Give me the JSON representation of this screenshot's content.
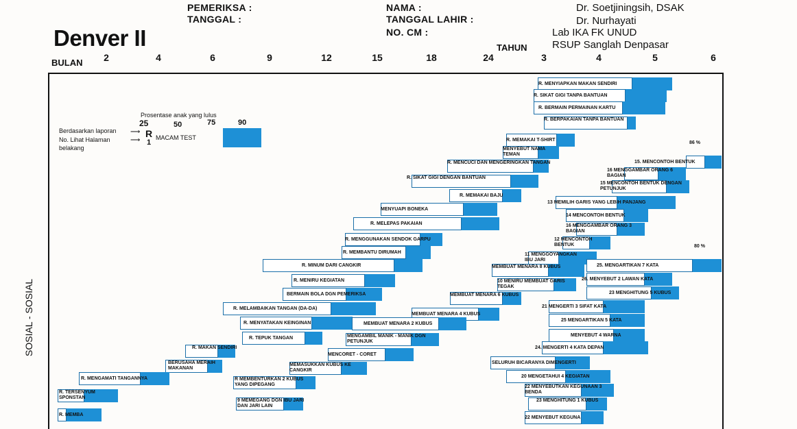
{
  "header": {
    "examiner_label": "PEMERIKSA :",
    "date_label": "TANGGAL :",
    "name_label": "NAMA :",
    "dob_label": "TANGGAL LAHIR :",
    "cm_label": "NO. CM :",
    "doctor1": "Dr. Soetjiningsih, DSAK",
    "doctor2": "Dr. Nurhayati",
    "lab": "Lab IKA FK UNUD",
    "hospital": "RSUP Sanglah Denpasar",
    "title": "Denver II",
    "unit_months": "BULAN",
    "unit_years": "TAHUN"
  },
  "ticks": {
    "months": [
      "2",
      "4",
      "6",
      "9",
      "12",
      "15",
      "18",
      "24"
    ],
    "years": [
      "3",
      "4",
      "5",
      "6"
    ]
  },
  "legend": {
    "percent_title": "Prosentase anak yang lulus",
    "p25": "25",
    "p50": "50",
    "p75": "75",
    "p90": "90",
    "report_line1": "Berdasarkan laporan",
    "report_line2": "No. Lihat Halaman",
    "report_line3": "belakang",
    "r_mark": "R",
    "r_num": "1",
    "test_label": "MACAM TEST"
  },
  "side_label": "SOSIAL - SOSIAL",
  "pct_marks": [
    "86 %",
    "80 %"
  ],
  "items": [
    {
      "label": "R. MENYIAPKAN MAKAN SENDIRI"
    },
    {
      "label": "R. SIKAT GIGI TANPA BANTUAN"
    },
    {
      "label": "R. BERMAIN PERMAINAN KARTU"
    },
    {
      "label": "R. BERPAKAIAN TANPA BANTUAN"
    },
    {
      "label": "R. MEMAKAI T-SHIRT"
    },
    {
      "label": "MENYEBUT NAMA TEMAN"
    },
    {
      "label": "R. MENCUCI DAN MENGERINGKAN TANGAN"
    },
    {
      "label": "R. SIKAT GIGI DENGAN BANTUAN"
    },
    {
      "label": "R. MEMAKAI BAJU"
    },
    {
      "label": "MENYUAPI BONEKA"
    },
    {
      "label": "R. MELEPAS PAKAIAN"
    },
    {
      "label": "R. MENGGUNAKAN SENDOK GARPU"
    },
    {
      "label": "R. MEMBANTU DIRUMAH"
    },
    {
      "label": "R. MINUM DARI CANGKIR"
    },
    {
      "label": "R. MENIRU KEGIATAN"
    },
    {
      "label": "BERMAIN BOLA DGN PEMERIKSA"
    },
    {
      "label": "R. MELAMBAIKAN TANGAN (DA-DA)"
    },
    {
      "label": "R. MENYATAKAN KEINGINAN"
    },
    {
      "label": "R. TEPUK TANGAN"
    },
    {
      "label": "R. MAKAN SENDIRI"
    },
    {
      "label": "BERUSAHA MERAIH MAKANAN"
    },
    {
      "label": "R. MENGAMATI TANGANNYA"
    },
    {
      "label": "R. TERSENYUM SPONSTAN"
    },
    {
      "label": "R. MEMBA"
    },
    {
      "label": "15. MENCONTOH BENTUK"
    },
    {
      "label": "16 MENGGAMBAR ORANG 6 BAGIAN"
    },
    {
      "label": "15 MENCONTOH BENTUK DENGAN PETUNJUK"
    },
    {
      "label": "13 MEMILIH GARIS YANG LEBIH PANJANG"
    },
    {
      "label": "14 MENCONTOH BENTUK"
    },
    {
      "label": "16 MENGGAMBAR ORANG 3 BAGIAN"
    },
    {
      "label": "12 MENCONTOH BENTUK"
    },
    {
      "label": "11 MENGGOYANGKAN IBU JARI"
    },
    {
      "label": "MEMBUAT MENARA 8 KUBUS"
    },
    {
      "label": "10 MENIRU MEMBUAT GARIS TEGAK"
    },
    {
      "label": "MEMBUAT MENARA 6 KUBUS"
    },
    {
      "label": "MEMBUAT MENARA 4 KUBUS"
    },
    {
      "label": "MEMBUAT MENARA 2 KUBUS"
    },
    {
      "label": "MENGAMBIL MANIK - MANIK DGN PETUNJUK"
    },
    {
      "label": "MENCORET - CORET"
    },
    {
      "label": "MEMASUKKAN KUBUS KE CANGKIR"
    },
    {
      "label": "R MEMBENTURKAN 2 KUBUS YANG DIPEGANG"
    },
    {
      "label": "9 MEMEGANG DGN IBU JARI DAN JARI LAIN"
    },
    {
      "label": "25. MENGARTIKAN 7 KATA"
    },
    {
      "label": "26. MENYEBUT 2 LAWAN KATA"
    },
    {
      "label": "23 MENGHITUNG 5 KUBUS"
    },
    {
      "label": "21 MENGERTI 3 SIFAT KATA"
    },
    {
      "label": "25 MENGARTIKAN 5 KATA"
    },
    {
      "label": "MENYEBUT 4 WARNA"
    },
    {
      "label": "24. MENGERTI 4 KATA DEPAN"
    },
    {
      "label": "SELURUH BICARANYA DIMENGERTI"
    },
    {
      "label": "20 MENGETAHUI 4 KEGIATAN"
    },
    {
      "label": "22 MENYEBUTKAN KEGUNAAN 3 BENDA"
    },
    {
      "label": "23 MENGHITUNG 1 KUBUS"
    },
    {
      "label": "22 MENYEBUT KEGUNA"
    }
  ]
}
